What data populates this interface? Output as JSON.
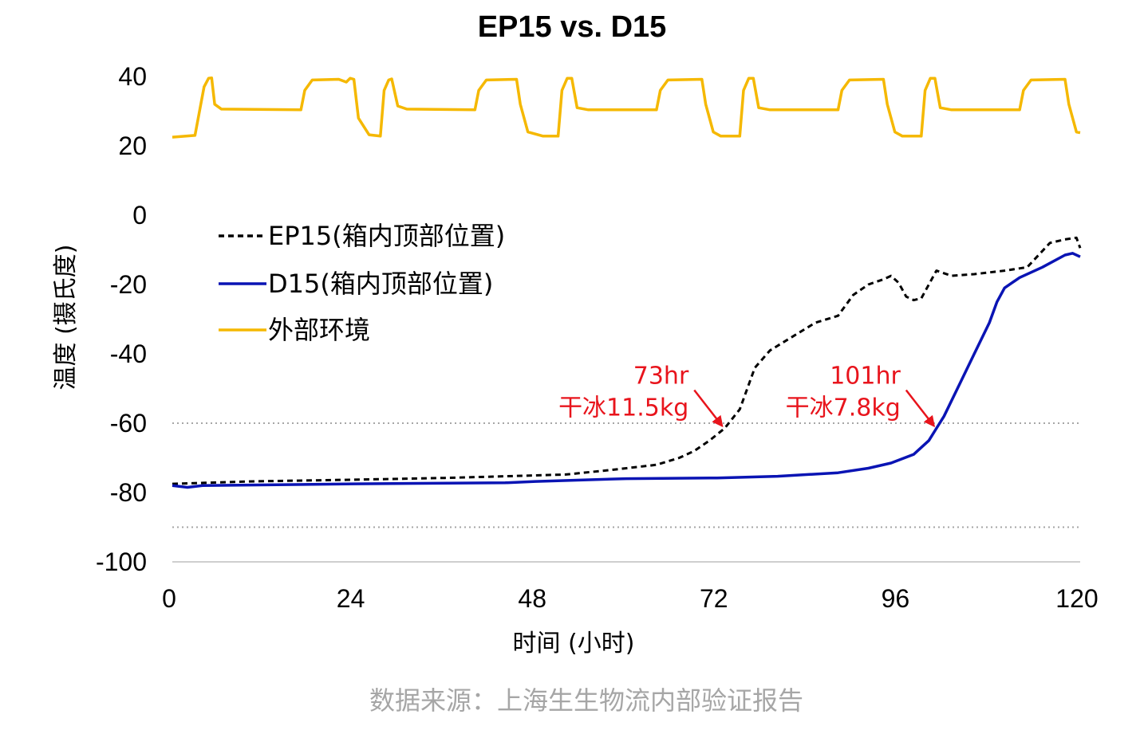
{
  "chart_data": {
    "type": "line",
    "title": "EP15 vs. D15",
    "xlabel": "时间 (小时)",
    "ylabel": "温度 (摄氏度)",
    "xlim": [
      0,
      120
    ],
    "ylim": [
      -100,
      0
    ],
    "x_ticks": [
      "0",
      "24",
      "48",
      "72",
      "96",
      "120"
    ],
    "y_ticks": [
      "0",
      "-20",
      "-40",
      "-60",
      "-80",
      "-100"
    ],
    "ambient_ticks": [
      "40",
      "20"
    ],
    "ambient_ylim": [
      20,
      40
    ],
    "reference_lines": [
      -60,
      -90
    ],
    "legend_position": "top-left",
    "series": [
      {
        "name": "EP15(箱内顶部位置)",
        "color": "#000000",
        "style": "dashed",
        "points": [
          [
            0,
            -77.5
          ],
          [
            10,
            -76.8
          ],
          [
            24,
            -76.3
          ],
          [
            36,
            -75.8
          ],
          [
            44,
            -75.3
          ],
          [
            52,
            -74.8
          ],
          [
            58,
            -73.5
          ],
          [
            64,
            -72.0
          ],
          [
            67,
            -70.0
          ],
          [
            69,
            -68.0
          ],
          [
            71,
            -65.0
          ],
          [
            73,
            -61.5
          ],
          [
            75,
            -56.0
          ],
          [
            77,
            -44.0
          ],
          [
            79,
            -39.0
          ],
          [
            82,
            -35.0
          ],
          [
            85,
            -31.0
          ],
          [
            88,
            -29.0
          ],
          [
            90,
            -23.0
          ],
          [
            92,
            -20.0
          ],
          [
            94,
            -18.5
          ],
          [
            95,
            -17.5
          ],
          [
            96,
            -19.5
          ],
          [
            97,
            -23.5
          ],
          [
            98,
            -24.5
          ],
          [
            99,
            -24.0
          ],
          [
            100,
            -20.0
          ],
          [
            101,
            -16.0
          ],
          [
            103,
            -17.5
          ],
          [
            106,
            -17.0
          ],
          [
            110,
            -16.0
          ],
          [
            113,
            -15.0
          ],
          [
            116,
            -8.0
          ],
          [
            118,
            -7.0
          ],
          [
            119.5,
            -6.5
          ],
          [
            120,
            -9.5
          ]
        ]
      },
      {
        "name": "D15(箱内顶部位置)",
        "color": "#0a14b4",
        "style": "solid",
        "points": [
          [
            0,
            -78.0
          ],
          [
            2,
            -78.5
          ],
          [
            4,
            -78.0
          ],
          [
            24,
            -77.5
          ],
          [
            44,
            -77.2
          ],
          [
            48,
            -76.8
          ],
          [
            60,
            -76.0
          ],
          [
            72,
            -75.8
          ],
          [
            80,
            -75.3
          ],
          [
            88,
            -74.3
          ],
          [
            92,
            -73.0
          ],
          [
            95,
            -71.5
          ],
          [
            98,
            -69.0
          ],
          [
            100,
            -65.0
          ],
          [
            101,
            -61.5
          ],
          [
            102,
            -58.0
          ],
          [
            104,
            -49.0
          ],
          [
            106,
            -40.0
          ],
          [
            108,
            -31.0
          ],
          [
            109,
            -25.0
          ],
          [
            110,
            -21.0
          ],
          [
            112,
            -18.0
          ],
          [
            115,
            -15.0
          ],
          [
            118,
            -11.5
          ],
          [
            119,
            -11.0
          ],
          [
            120,
            -12.0
          ]
        ]
      },
      {
        "name": "外部环境",
        "color": "#f5b800",
        "style": "solid",
        "axis": "ambient",
        "points": [
          [
            0,
            22.5
          ],
          [
            3,
            23.0
          ],
          [
            4.2,
            37.0
          ],
          [
            4.8,
            39.5
          ],
          [
            5.2,
            39.6
          ],
          [
            5.6,
            32.0
          ],
          [
            6.5,
            30.6
          ],
          [
            17,
            30.4
          ],
          [
            17.5,
            36.0
          ],
          [
            18.5,
            39.0
          ],
          [
            22,
            39.2
          ],
          [
            23.0,
            38.4
          ],
          [
            23.5,
            39.5
          ],
          [
            24,
            39.2
          ],
          [
            24.6,
            28.0
          ],
          [
            26,
            23.2
          ],
          [
            27.5,
            22.8
          ],
          [
            28,
            36.0
          ],
          [
            28.6,
            39.0
          ],
          [
            29.0,
            39.3
          ],
          [
            29.8,
            31.5
          ],
          [
            31,
            30.6
          ],
          [
            40,
            30.4
          ],
          [
            40.5,
            36.0
          ],
          [
            41.5,
            39.0
          ],
          [
            45.5,
            39.2
          ],
          [
            46,
            32.0
          ],
          [
            47,
            24.0
          ],
          [
            49,
            22.8
          ],
          [
            51,
            22.8
          ],
          [
            51.5,
            36.0
          ],
          [
            52.2,
            39.5
          ],
          [
            52.8,
            39.5
          ],
          [
            53.5,
            31.0
          ],
          [
            55,
            30.4
          ],
          [
            64,
            30.4
          ],
          [
            64.5,
            36.0
          ],
          [
            65.5,
            39.0
          ],
          [
            70,
            39.2
          ],
          [
            70.5,
            32.0
          ],
          [
            71.5,
            24.0
          ],
          [
            72.5,
            22.8
          ],
          [
            75,
            22.8
          ],
          [
            75.5,
            36.0
          ],
          [
            76.2,
            39.5
          ],
          [
            76.8,
            39.5
          ],
          [
            77.5,
            31.0
          ],
          [
            79,
            30.4
          ],
          [
            88,
            30.4
          ],
          [
            88.5,
            36.0
          ],
          [
            89.5,
            39.0
          ],
          [
            94,
            39.2
          ],
          [
            94.5,
            32.0
          ],
          [
            95.5,
            24.0
          ],
          [
            96.5,
            22.8
          ],
          [
            99,
            22.8
          ],
          [
            99.5,
            36.0
          ],
          [
            100.2,
            39.5
          ],
          [
            100.8,
            39.5
          ],
          [
            101.5,
            31.0
          ],
          [
            103,
            30.4
          ],
          [
            112,
            30.4
          ],
          [
            112.5,
            36.0
          ],
          [
            113.5,
            39.0
          ],
          [
            118,
            39.2
          ],
          [
            118.5,
            32.0
          ],
          [
            119.5,
            24.0
          ],
          [
            120,
            23.8
          ]
        ]
      }
    ],
    "annotations": [
      {
        "line1": "73hr",
        "line2": "干冰11.5kg",
        "x": 73,
        "y": -61.5
      },
      {
        "line1": "101hr",
        "line2": "干冰7.8kg",
        "x": 101,
        "y": -61.5
      }
    ]
  },
  "source": "数据来源：上海生生物流内部验证报告"
}
